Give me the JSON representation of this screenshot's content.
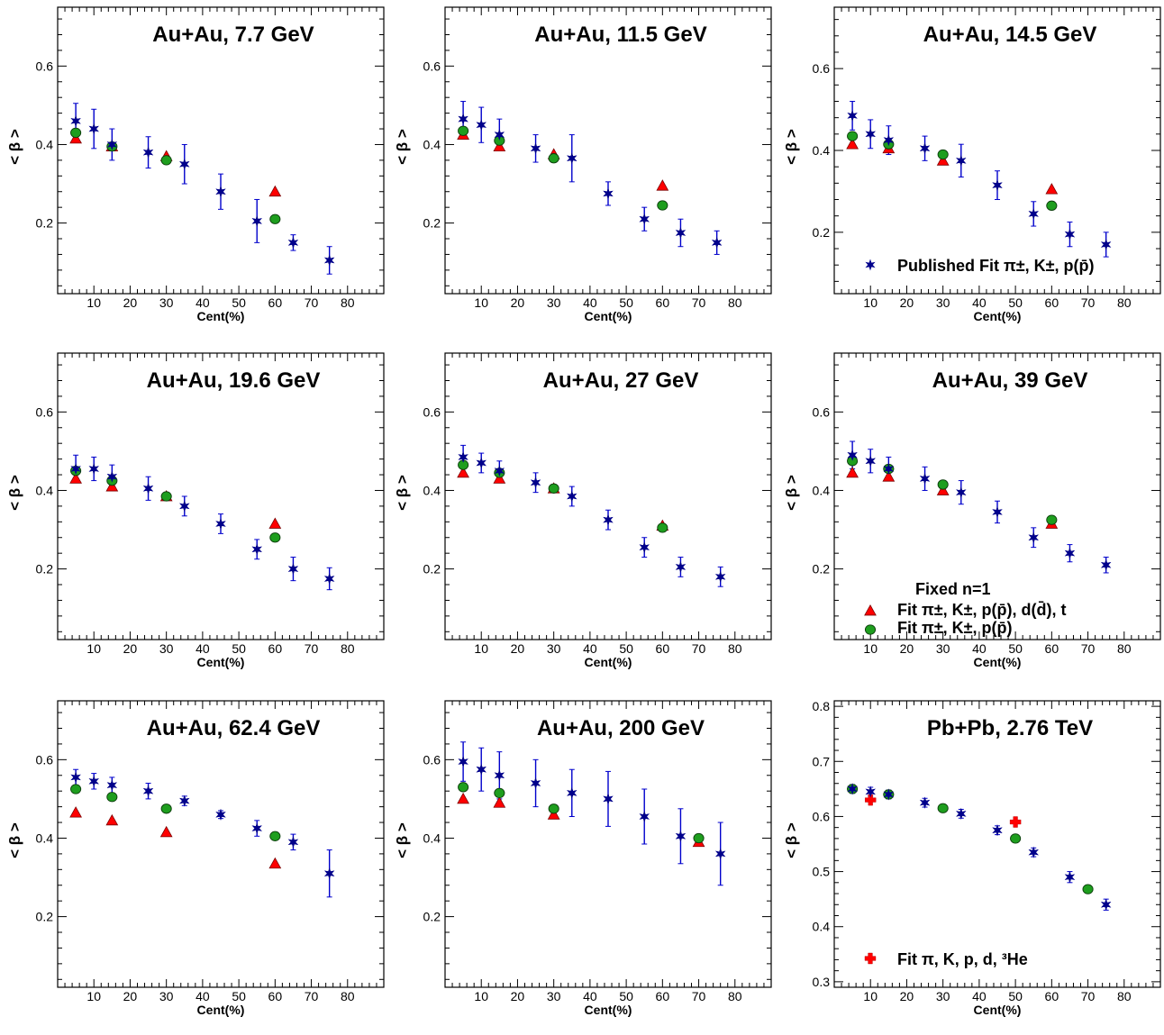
{
  "figure": {
    "x_axis_label": "Cent(%)",
    "y_axis_label": "< β >"
  },
  "colors": {
    "published_fit": "#00008b",
    "published_errorbar": "#0000cc",
    "fit_with_light_nuclei": "#ff0000",
    "fit_pi_k_p": "#1e9e1e",
    "fit_lhc": "#ff0000",
    "frame": "#000000"
  },
  "legends": {
    "published": "Published Fit  π±, K±, p(p̄)",
    "fixed_heading": "Fixed n=1",
    "fit_light_nuclei": "Fit  π±, K±, p(p̄), d(d̄), t",
    "fit_pi_k_p": "Fit  π±, K±, p(p̄)",
    "fit_lhc": "Fit  π, K, p, d, ³He"
  },
  "chart_data": [
    {
      "type": "scatter",
      "title": "Au+Au, 7.7 GeV",
      "xlabel": "Cent(%)",
      "ylabel": "< β >",
      "xlim": [
        0,
        90
      ],
      "ylim": [
        0.02,
        0.75
      ],
      "xticks": [
        10,
        20,
        30,
        40,
        50,
        60,
        70,
        80
      ],
      "yticks": [
        0.2,
        0.4,
        0.6
      ],
      "series": [
        {
          "role": "published",
          "x": [
            5,
            10,
            15,
            25,
            35,
            45,
            55,
            65,
            75
          ],
          "y": [
            0.46,
            0.44,
            0.4,
            0.38,
            0.35,
            0.28,
            0.205,
            0.15,
            0.105
          ],
          "err": [
            0.045,
            0.05,
            0.04,
            0.04,
            0.05,
            0.045,
            0.055,
            0.02,
            0.035
          ]
        },
        {
          "role": "fit_light_nuclei",
          "x": [
            5,
            15,
            30,
            60
          ],
          "y": [
            0.415,
            0.395,
            0.37,
            0.28
          ]
        },
        {
          "role": "fit_pi_k_p",
          "x": [
            5,
            15,
            30,
            60
          ],
          "y": [
            0.43,
            0.395,
            0.36,
            0.21
          ]
        }
      ]
    },
    {
      "type": "scatter",
      "title": "Au+Au, 11.5 GeV",
      "xlabel": "Cent(%)",
      "ylabel": "< β >",
      "xlim": [
        0,
        90
      ],
      "ylim": [
        0.02,
        0.75
      ],
      "xticks": [
        10,
        20,
        30,
        40,
        50,
        60,
        70,
        80
      ],
      "yticks": [
        0.2,
        0.4,
        0.6
      ],
      "series": [
        {
          "role": "published",
          "x": [
            5,
            10,
            15,
            25,
            35,
            45,
            55,
            65,
            75
          ],
          "y": [
            0.465,
            0.45,
            0.425,
            0.39,
            0.365,
            0.275,
            0.21,
            0.175,
            0.15
          ],
          "err": [
            0.045,
            0.045,
            0.04,
            0.035,
            0.06,
            0.03,
            0.03,
            0.035,
            0.03
          ]
        },
        {
          "role": "fit_light_nuclei",
          "x": [
            5,
            15,
            30,
            60
          ],
          "y": [
            0.425,
            0.395,
            0.375,
            0.295
          ]
        },
        {
          "role": "fit_pi_k_p",
          "x": [
            5,
            15,
            30,
            60
          ],
          "y": [
            0.435,
            0.41,
            0.365,
            0.245
          ]
        }
      ]
    },
    {
      "type": "scatter",
      "title": "Au+Au, 14.5 GeV",
      "xlabel": "Cent(%)",
      "ylabel": "< β >",
      "xlim": [
        0,
        90
      ],
      "ylim": [
        0.05,
        0.75
      ],
      "xticks": [
        10,
        20,
        30,
        40,
        50,
        60,
        70,
        80
      ],
      "yticks": [
        0.2,
        0.4,
        0.6
      ],
      "series": [
        {
          "role": "published",
          "x": [
            5,
            10,
            15,
            25,
            35,
            45,
            55,
            65,
            75
          ],
          "y": [
            0.485,
            0.44,
            0.425,
            0.405,
            0.375,
            0.315,
            0.245,
            0.195,
            0.17
          ],
          "err": [
            0.035,
            0.035,
            0.035,
            0.03,
            0.04,
            0.035,
            0.03,
            0.03,
            0.03
          ]
        },
        {
          "role": "fit_light_nuclei",
          "x": [
            5,
            15,
            30,
            60
          ],
          "y": [
            0.415,
            0.405,
            0.375,
            0.305
          ]
        },
        {
          "role": "fit_pi_k_p",
          "x": [
            5,
            15,
            30,
            60
          ],
          "y": [
            0.435,
            0.415,
            0.39,
            0.265
          ]
        }
      ],
      "legend": [
        "published"
      ]
    },
    {
      "type": "scatter",
      "title": "Au+Au, 19.6 GeV",
      "xlabel": "Cent(%)",
      "ylabel": "< β >",
      "xlim": [
        0,
        90
      ],
      "ylim": [
        0.02,
        0.75
      ],
      "xticks": [
        10,
        20,
        30,
        40,
        50,
        60,
        70,
        80
      ],
      "yticks": [
        0.2,
        0.4,
        0.6
      ],
      "series": [
        {
          "role": "published",
          "x": [
            5,
            10,
            15,
            25,
            35,
            45,
            55,
            65,
            75
          ],
          "y": [
            0.455,
            0.455,
            0.435,
            0.405,
            0.36,
            0.315,
            0.25,
            0.2,
            0.175
          ],
          "err": [
            0.035,
            0.03,
            0.03,
            0.03,
            0.025,
            0.025,
            0.025,
            0.03,
            0.028
          ]
        },
        {
          "role": "fit_light_nuclei",
          "x": [
            5,
            15,
            30,
            60
          ],
          "y": [
            0.43,
            0.41,
            0.385,
            0.315
          ]
        },
        {
          "role": "fit_pi_k_p",
          "x": [
            5,
            15,
            30,
            60
          ],
          "y": [
            0.45,
            0.425,
            0.385,
            0.28
          ]
        }
      ]
    },
    {
      "type": "scatter",
      "title": "Au+Au, 27 GeV",
      "xlabel": "Cent(%)",
      "ylabel": "< β >",
      "xlim": [
        0,
        90
      ],
      "ylim": [
        0.02,
        0.75
      ],
      "xticks": [
        10,
        20,
        30,
        40,
        50,
        60,
        70,
        80
      ],
      "yticks": [
        0.2,
        0.4,
        0.6
      ],
      "series": [
        {
          "role": "published",
          "x": [
            5,
            10,
            15,
            25,
            35,
            45,
            55,
            65,
            76
          ],
          "y": [
            0.485,
            0.47,
            0.45,
            0.42,
            0.385,
            0.325,
            0.255,
            0.205,
            0.18
          ],
          "err": [
            0.03,
            0.025,
            0.025,
            0.025,
            0.025,
            0.025,
            0.025,
            0.025,
            0.025
          ]
        },
        {
          "role": "fit_light_nuclei",
          "x": [
            5,
            15,
            30,
            60
          ],
          "y": [
            0.445,
            0.43,
            0.405,
            0.31
          ]
        },
        {
          "role": "fit_pi_k_p",
          "x": [
            5,
            15,
            30,
            60
          ],
          "y": [
            0.465,
            0.445,
            0.405,
            0.305
          ]
        }
      ]
    },
    {
      "type": "scatter",
      "title": "Au+Au, 39 GeV",
      "xlabel": "Cent(%)",
      "ylabel": "< β >",
      "xlim": [
        0,
        90
      ],
      "ylim": [
        0.02,
        0.75
      ],
      "xticks": [
        10,
        20,
        30,
        40,
        50,
        60,
        70,
        80
      ],
      "yticks": [
        0.2,
        0.4,
        0.6
      ],
      "series": [
        {
          "role": "published",
          "x": [
            5,
            10,
            15,
            25,
            35,
            45,
            55,
            65,
            75
          ],
          "y": [
            0.49,
            0.475,
            0.455,
            0.43,
            0.395,
            0.345,
            0.28,
            0.24,
            0.21
          ],
          "err": [
            0.035,
            0.03,
            0.03,
            0.03,
            0.03,
            0.028,
            0.025,
            0.022,
            0.02
          ]
        },
        {
          "role": "fit_light_nuclei",
          "x": [
            5,
            15,
            30,
            60
          ],
          "y": [
            0.445,
            0.435,
            0.4,
            0.315
          ]
        },
        {
          "role": "fit_pi_k_p",
          "x": [
            5,
            15,
            30,
            60
          ],
          "y": [
            0.475,
            0.455,
            0.415,
            0.325
          ]
        }
      ],
      "legend": [
        "fixed_heading",
        "fit_light_nuclei",
        "fit_pi_k_p"
      ]
    },
    {
      "type": "scatter",
      "title": "Au+Au, 62.4 GeV",
      "xlabel": "Cent(%)",
      "ylabel": "< β >",
      "xlim": [
        0,
        90
      ],
      "ylim": [
        0.02,
        0.75
      ],
      "xticks": [
        10,
        20,
        30,
        40,
        50,
        60,
        70,
        80
      ],
      "yticks": [
        0.2,
        0.4,
        0.6
      ],
      "series": [
        {
          "role": "published",
          "x": [
            5,
            10,
            15,
            25,
            35,
            45,
            55,
            65,
            75
          ],
          "y": [
            0.555,
            0.545,
            0.535,
            0.52,
            0.495,
            0.46,
            0.425,
            0.39,
            0.31
          ],
          "err": [
            0.02,
            0.02,
            0.02,
            0.02,
            0.012,
            0.01,
            0.02,
            0.02,
            0.06
          ]
        },
        {
          "role": "fit_light_nuclei",
          "x": [
            5,
            15,
            30,
            60
          ],
          "y": [
            0.465,
            0.445,
            0.415,
            0.335
          ]
        },
        {
          "role": "fit_pi_k_p",
          "x": [
            5,
            15,
            30,
            60
          ],
          "y": [
            0.525,
            0.505,
            0.475,
            0.405
          ]
        }
      ]
    },
    {
      "type": "scatter",
      "title": "Au+Au, 200 GeV",
      "xlabel": "Cent(%)",
      "ylabel": "< β >",
      "xlim": [
        0,
        90
      ],
      "ylim": [
        0.02,
        0.75
      ],
      "xticks": [
        10,
        20,
        30,
        40,
        50,
        60,
        70,
        80
      ],
      "yticks": [
        0.2,
        0.4,
        0.6
      ],
      "series": [
        {
          "role": "published",
          "x": [
            5,
            10,
            15,
            25,
            35,
            45,
            55,
            65,
            76
          ],
          "y": [
            0.595,
            0.575,
            0.56,
            0.54,
            0.515,
            0.5,
            0.455,
            0.405,
            0.36
          ],
          "err": [
            0.05,
            0.055,
            0.06,
            0.06,
            0.06,
            0.07,
            0.07,
            0.07,
            0.08
          ]
        },
        {
          "role": "fit_light_nuclei",
          "x": [
            5,
            15,
            30,
            70
          ],
          "y": [
            0.5,
            0.49,
            0.46,
            0.39
          ]
        },
        {
          "role": "fit_pi_k_p",
          "x": [
            5,
            15,
            30,
            70
          ],
          "y": [
            0.53,
            0.515,
            0.475,
            0.4
          ]
        }
      ]
    },
    {
      "type": "scatter",
      "title": "Pb+Pb, 2.76 TeV",
      "xlabel": "Cent(%)",
      "ylabel": "< β >",
      "xlim": [
        0,
        90
      ],
      "ylim": [
        0.29,
        0.81
      ],
      "xticks": [
        10,
        20,
        30,
        40,
        50,
        60,
        70,
        80
      ],
      "yticks": [
        0.3,
        0.4,
        0.5,
        0.6,
        0.7,
        0.8
      ],
      "series": [
        {
          "role": "published",
          "x": [
            5,
            10,
            15,
            25,
            35,
            45,
            55,
            65,
            75
          ],
          "y": [
            0.65,
            0.645,
            0.64,
            0.625,
            0.605,
            0.575,
            0.535,
            0.49,
            0.44
          ],
          "err": [
            0.008,
            0.008,
            0.008,
            0.008,
            0.008,
            0.008,
            0.008,
            0.01,
            0.01
          ]
        },
        {
          "role": "fit_lhc",
          "x": [
            10,
            50
          ],
          "y": [
            0.63,
            0.59
          ]
        },
        {
          "role": "fit_pi_k_p",
          "x": [
            5,
            15,
            30,
            50,
            70
          ],
          "y": [
            0.65,
            0.64,
            0.615,
            0.56,
            0.468
          ]
        }
      ],
      "legend": [
        "fit_lhc"
      ]
    }
  ]
}
